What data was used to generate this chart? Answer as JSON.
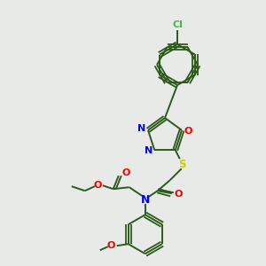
{
  "bg_color": "#e8eae8",
  "bond_color": "#2d5a1b",
  "atom_colors": {
    "N": "#0000ee",
    "O": "#ee0000",
    "S": "#cccc00",
    "Cl": "#44bb44",
    "C": "#2d5a1b"
  }
}
